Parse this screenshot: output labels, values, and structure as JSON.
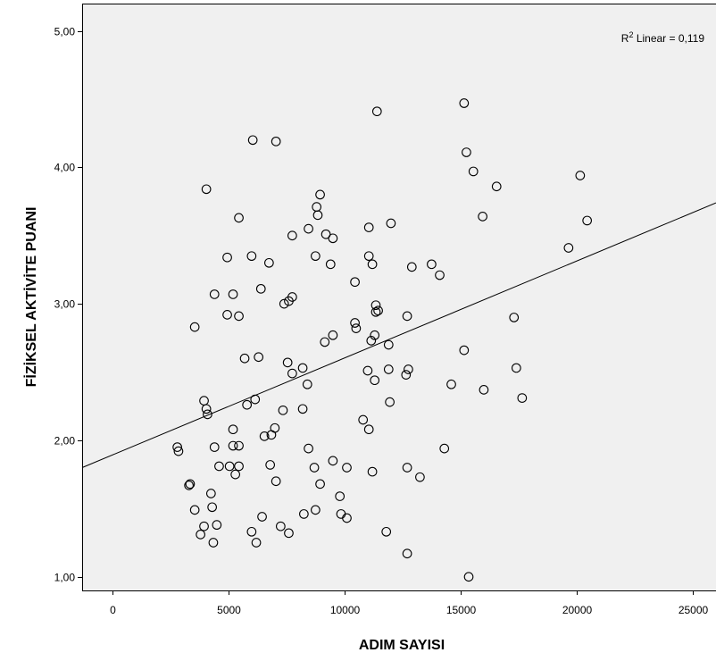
{
  "chart_data": {
    "type": "scatter",
    "title": "",
    "xlabel": "ADIM SAYISI",
    "ylabel": "FİZİKSEL AKTİVİTE PUANI",
    "xlim": [
      -1300,
      26000
    ],
    "ylim": [
      0.9,
      5.2
    ],
    "xticks": [
      0,
      5000,
      10000,
      15000,
      20000,
      25000
    ],
    "xtick_labels": [
      "0",
      "5000",
      "10000",
      "15000",
      "20000",
      "25000"
    ],
    "yticks": [
      1,
      2,
      3,
      4,
      5
    ],
    "ytick_labels": [
      "1,00",
      "2,00",
      "3,00",
      "4,00",
      "5,00"
    ],
    "grid": false,
    "background": "#f0f0f0",
    "marker": "open-circle",
    "annotation": {
      "prefix": "R",
      "sup": "2",
      "suffix": " Linear = 0,119"
    },
    "fit_line": {
      "type": "linear",
      "x": [
        -1300,
        26000
      ],
      "y": [
        1.8,
        3.74
      ]
    },
    "points": [
      [
        11400,
        4.41
      ],
      [
        15150,
        4.47
      ],
      [
        6050,
        4.2
      ],
      [
        7050,
        4.19
      ],
      [
        15250,
        4.11
      ],
      [
        15550,
        3.97
      ],
      [
        20150,
        3.94
      ],
      [
        16550,
        3.86
      ],
      [
        4050,
        3.84
      ],
      [
        8950,
        3.8
      ],
      [
        8800,
        3.71
      ],
      [
        8850,
        3.65
      ],
      [
        15950,
        3.64
      ],
      [
        5450,
        3.63
      ],
      [
        20450,
        3.61
      ],
      [
        12000,
        3.59
      ],
      [
        11050,
        3.56
      ],
      [
        8450,
        3.55
      ],
      [
        9200,
        3.51
      ],
      [
        7750,
        3.5
      ],
      [
        9500,
        3.48
      ],
      [
        19650,
        3.41
      ],
      [
        11050,
        3.35
      ],
      [
        6000,
        3.35
      ],
      [
        8750,
        3.35
      ],
      [
        4950,
        3.34
      ],
      [
        6750,
        3.3
      ],
      [
        11200,
        3.29
      ],
      [
        9400,
        3.29
      ],
      [
        13750,
        3.29
      ],
      [
        12900,
        3.27
      ],
      [
        14100,
        3.21
      ],
      [
        10450,
        3.16
      ],
      [
        6400,
        3.11
      ],
      [
        5200,
        3.07
      ],
      [
        4400,
        3.07
      ],
      [
        7750,
        3.05
      ],
      [
        7600,
        3.02
      ],
      [
        7400,
        3.0
      ],
      [
        11350,
        2.99
      ],
      [
        11450,
        2.95
      ],
      [
        11350,
        2.94
      ],
      [
        4950,
        2.92
      ],
      [
        5450,
        2.91
      ],
      [
        12700,
        2.91
      ],
      [
        17300,
        2.9
      ],
      [
        10450,
        2.86
      ],
      [
        10500,
        2.82
      ],
      [
        3550,
        2.83
      ],
      [
        9500,
        2.77
      ],
      [
        11300,
        2.77
      ],
      [
        11150,
        2.73
      ],
      [
        9150,
        2.72
      ],
      [
        11900,
        2.7
      ],
      [
        15150,
        2.66
      ],
      [
        5700,
        2.6
      ],
      [
        6300,
        2.61
      ],
      [
        7550,
        2.57
      ],
      [
        17400,
        2.53
      ],
      [
        8200,
        2.53
      ],
      [
        11900,
        2.52
      ],
      [
        12750,
        2.52
      ],
      [
        11000,
        2.51
      ],
      [
        7750,
        2.49
      ],
      [
        12650,
        2.48
      ],
      [
        11300,
        2.44
      ],
      [
        8400,
        2.41
      ],
      [
        14600,
        2.41
      ],
      [
        16000,
        2.37
      ],
      [
        17650,
        2.31
      ],
      [
        6150,
        2.3
      ],
      [
        3950,
        2.29
      ],
      [
        11950,
        2.28
      ],
      [
        5800,
        2.26
      ],
      [
        4050,
        2.23
      ],
      [
        7350,
        2.22
      ],
      [
        8200,
        2.23
      ],
      [
        4100,
        2.19
      ],
      [
        10800,
        2.15
      ],
      [
        7000,
        2.09
      ],
      [
        5200,
        2.08
      ],
      [
        11050,
        2.08
      ],
      [
        6850,
        2.04
      ],
      [
        6550,
        2.03
      ],
      [
        2800,
        1.95
      ],
      [
        4400,
        1.95
      ],
      [
        5450,
        1.96
      ],
      [
        5200,
        1.96
      ],
      [
        2850,
        1.92
      ],
      [
        8450,
        1.94
      ],
      [
        14300,
        1.94
      ],
      [
        9500,
        1.85
      ],
      [
        4600,
        1.81
      ],
      [
        5050,
        1.81
      ],
      [
        5450,
        1.81
      ],
      [
        6800,
        1.82
      ],
      [
        8700,
        1.8
      ],
      [
        10100,
        1.8
      ],
      [
        12700,
        1.8
      ],
      [
        11200,
        1.77
      ],
      [
        5300,
        1.75
      ],
      [
        13250,
        1.73
      ],
      [
        7050,
        1.7
      ],
      [
        3350,
        1.68
      ],
      [
        3300,
        1.67
      ],
      [
        8950,
        1.68
      ],
      [
        4250,
        1.61
      ],
      [
        9800,
        1.59
      ],
      [
        4300,
        1.51
      ],
      [
        3550,
        1.49
      ],
      [
        8750,
        1.49
      ],
      [
        9850,
        1.46
      ],
      [
        8250,
        1.46
      ],
      [
        10100,
        1.43
      ],
      [
        6450,
        1.44
      ],
      [
        3950,
        1.37
      ],
      [
        4500,
        1.38
      ],
      [
        7250,
        1.37
      ],
      [
        11800,
        1.33
      ],
      [
        6000,
        1.33
      ],
      [
        7600,
        1.32
      ],
      [
        3800,
        1.31
      ],
      [
        4350,
        1.25
      ],
      [
        6200,
        1.25
      ],
      [
        12700,
        1.17
      ],
      [
        15350,
        1.0
      ]
    ]
  }
}
